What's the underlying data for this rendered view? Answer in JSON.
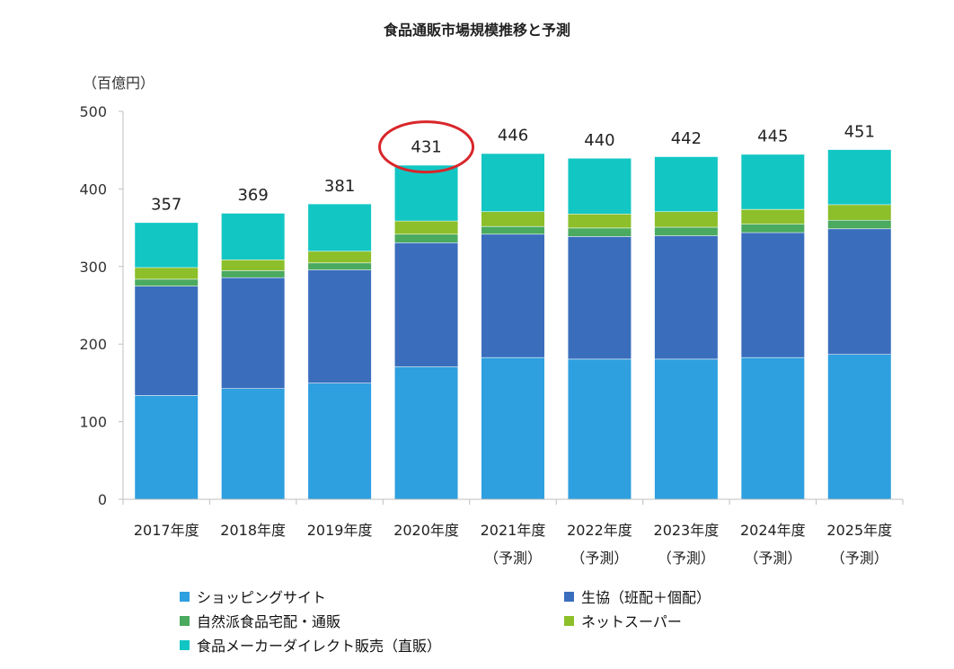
{
  "chart_data": {
    "type": "bar",
    "stacked": true,
    "title": "食品通販市場規模推移と予測",
    "unit_label": "（百億円）",
    "categories": [
      {
        "line1": "2017年度",
        "line2": ""
      },
      {
        "line1": "2018年度",
        "line2": ""
      },
      {
        "line1": "2019年度",
        "line2": ""
      },
      {
        "line1": "2020年度",
        "line2": ""
      },
      {
        "line1": "2021年度",
        "line2": "（予測）"
      },
      {
        "line1": "2022年度",
        "line2": "（予測）"
      },
      {
        "line1": "2023年度",
        "line2": "（予測）"
      },
      {
        "line1": "2024年度",
        "line2": "（予測）"
      },
      {
        "line1": "2025年度",
        "line2": "（予測）"
      }
    ],
    "totals": [
      357,
      369,
      381,
      431,
      446,
      440,
      442,
      445,
      451
    ],
    "series": [
      {
        "name": "ショッピングサイト",
        "color": "#2e9fdf",
        "values": [
          134,
          143,
          150,
          171,
          183,
          181,
          181,
          183,
          187
        ]
      },
      {
        "name": "生協（班配＋個配）",
        "color": "#3a6ebd",
        "values": [
          141,
          143,
          146,
          160,
          159,
          158,
          159,
          161,
          162
        ]
      },
      {
        "name": "自然派食品宅配・通販",
        "color": "#4aaa5f",
        "values": [
          9,
          9,
          9,
          11,
          10,
          11,
          11,
          11,
          11
        ]
      },
      {
        "name": "ネットスーパー",
        "color": "#8cbf2a",
        "values": [
          15,
          14,
          15,
          17,
          19,
          18,
          20,
          19,
          20
        ]
      },
      {
        "name": "食品メーカーダイレクト販売（直販）",
        "color": "#12c6c3",
        "values": [
          58,
          60,
          61,
          72,
          75,
          72,
          71,
          71,
          71
        ]
      }
    ],
    "ylim": [
      0,
      500
    ],
    "yticks": [
      0,
      100,
      200,
      300,
      400,
      500
    ],
    "highlighted_category": "2020年度",
    "highlight_color": "#d8262b"
  }
}
